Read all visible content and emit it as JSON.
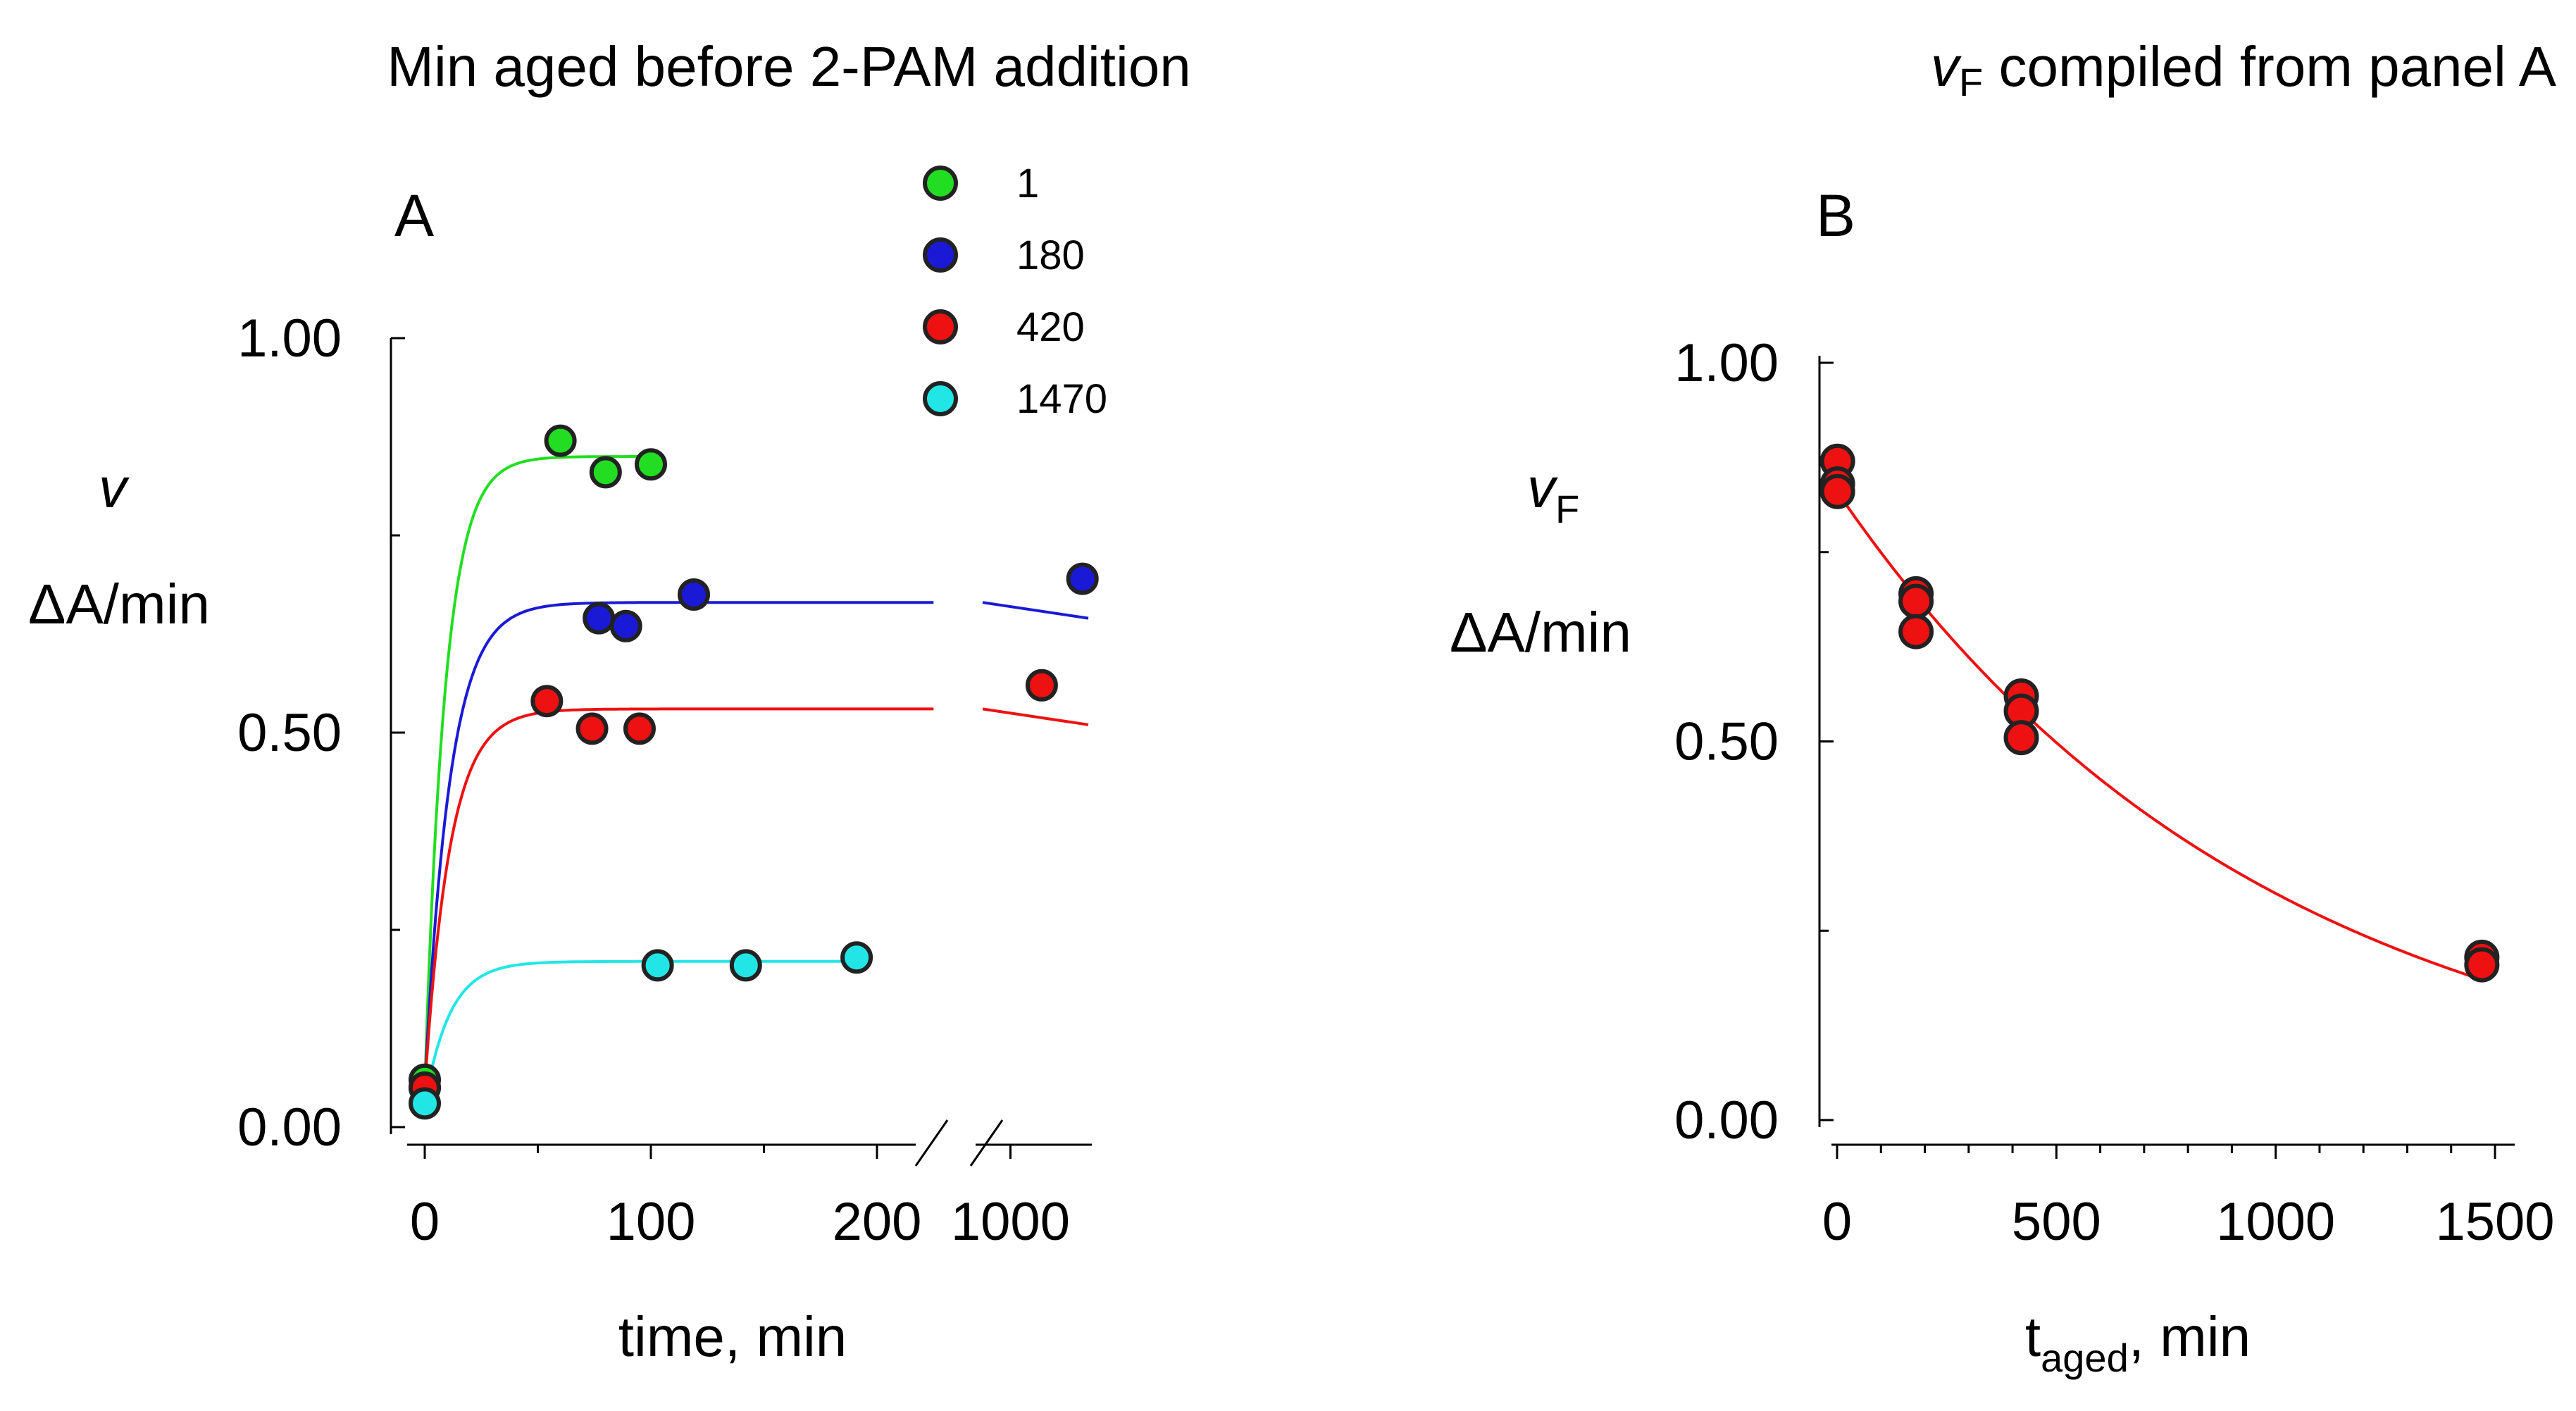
{
  "chart_data": [
    {
      "panel": "A",
      "type": "scatter",
      "title": "Min aged before 2-PAM addition",
      "panel_label": "A",
      "ylabel_symbol": "v",
      "ylabel_units": "ΔA/min",
      "xlabel": "time, min",
      "axis_break": "between 200 and 1000",
      "x_ticks_left": [
        0,
        100,
        200
      ],
      "x_ticks_right": [
        1000
      ],
      "x_tick_labels": [
        "0",
        "100",
        "200",
        "1000"
      ],
      "y_ticks": [
        0.0,
        0.5,
        1.0
      ],
      "y_tick_labels": [
        "0.00",
        "0.50",
        "1.00"
      ],
      "ylim": [
        0,
        1.0
      ],
      "xlim_left": [
        -10,
        215
      ],
      "xlim_right": [
        950,
        1130
      ],
      "legend_title": "",
      "legend_position": "top-center",
      "series": [
        {
          "name": "1",
          "color": "#22dd22",
          "points": [
            [
              0,
              0.06
            ],
            [
              60,
              0.87
            ],
            [
              80,
              0.83
            ],
            [
              100,
              0.84
            ]
          ],
          "fit": {
            "vmax": 0.85,
            "v0": 0.05,
            "k": 0.11,
            "x_end_left": 100
          }
        },
        {
          "name": "180",
          "color": "#1a1ad6",
          "points": [
            [
              0,
              0.05
            ],
            [
              77,
              0.645
            ],
            [
              89,
              0.635
            ],
            [
              119,
              0.675
            ],
            [
              1115,
              0.695
            ]
          ],
          "fit": {
            "vmax": 0.665,
            "v0": 0.05,
            "k": 0.09,
            "x_end_left": 225,
            "right_start": 0.665,
            "right_end": 0.645
          }
        },
        {
          "name": "420",
          "color": "#ee1111",
          "points": [
            [
              0,
              0.05
            ],
            [
              54,
              0.54
            ],
            [
              74,
              0.505
            ],
            [
              95,
              0.505
            ],
            [
              1050,
              0.56
            ]
          ],
          "fit": {
            "vmax": 0.53,
            "v0": 0.05,
            "k": 0.09,
            "x_end_left": 225,
            "right_start": 0.53,
            "right_end": 0.51
          }
        },
        {
          "name": "1470",
          "color": "#22e6e6",
          "points": [
            [
              0,
              0.03
            ],
            [
              103,
              0.205
            ],
            [
              142,
              0.205
            ],
            [
              191,
              0.215
            ]
          ],
          "fit": {
            "vmax": 0.21,
            "v0": 0.03,
            "k": 0.09,
            "x_end_left": 195
          }
        }
      ]
    },
    {
      "panel": "B",
      "type": "scatter",
      "title_symbol": "v",
      "title_sub": "F",
      "title_rest": " compiled from panel A",
      "panel_label": "B",
      "ylabel_symbol": "v",
      "ylabel_sub": "F",
      "ylabel_units": "ΔA/min",
      "xlabel_main": "t",
      "xlabel_sub": "aged",
      "xlabel_rest": ", min",
      "x_ticks": [
        0,
        500,
        1000,
        1500
      ],
      "x_tick_labels": [
        "0",
        "500",
        "1000",
        "1500"
      ],
      "y_ticks": [
        0.0,
        0.5,
        1.0
      ],
      "y_tick_labels": [
        "0.00",
        "0.50",
        "1.00"
      ],
      "xlim": [
        -20,
        1510
      ],
      "ylim": [
        0,
        1.0
      ],
      "color": "#ee1111",
      "points": [
        [
          1,
          0.87
        ],
        [
          1,
          0.84
        ],
        [
          1,
          0.83
        ],
        [
          180,
          0.695
        ],
        [
          180,
          0.685
        ],
        [
          180,
          0.645
        ],
        [
          420,
          0.56
        ],
        [
          420,
          0.54
        ],
        [
          420,
          0.505
        ],
        [
          1470,
          0.215
        ],
        [
          1470,
          0.205
        ]
      ],
      "fit": {
        "a": 0.83,
        "k": 0.00102,
        "x_range": [
          0,
          1470
        ]
      }
    }
  ]
}
